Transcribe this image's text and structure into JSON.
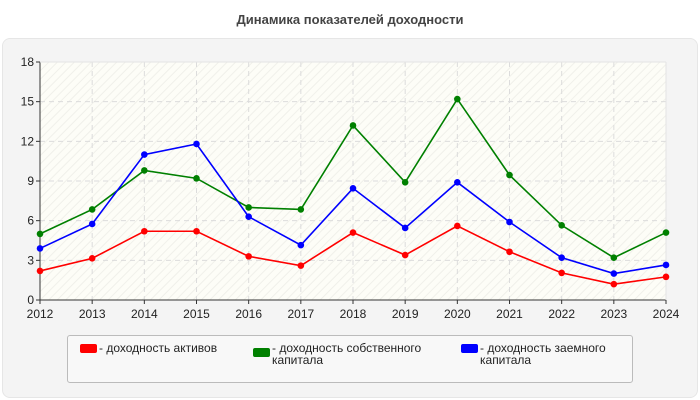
{
  "chart_data": {
    "type": "line",
    "title": "Динамика показателей доходности",
    "xlabel": "",
    "ylabel": "",
    "x": [
      2012,
      2013,
      2014,
      2015,
      2016,
      2017,
      2018,
      2019,
      2020,
      2021,
      2022,
      2023,
      2024
    ],
    "ylim": [
      0,
      18
    ],
    "yticks": [
      0,
      3,
      6,
      9,
      12,
      15,
      18
    ],
    "grid": true,
    "legend": "bottom",
    "series": [
      {
        "name": "- доходность активов",
        "color": "#ff0000",
        "values": [
          2.2,
          3.15,
          5.2,
          5.2,
          3.3,
          2.6,
          5.1,
          3.4,
          5.6,
          3.65,
          2.05,
          1.2,
          1.75
        ]
      },
      {
        "name": "- доходность собственного капитала",
        "color": "#008000",
        "values": [
          5.0,
          6.85,
          9.8,
          9.2,
          7.0,
          6.85,
          13.2,
          8.9,
          15.2,
          9.45,
          5.65,
          3.2,
          5.1
        ]
      },
      {
        "name": "- доходность заемного капитала",
        "color": "#0000ff",
        "values": [
          3.9,
          5.75,
          11.0,
          11.8,
          6.3,
          4.15,
          8.45,
          5.45,
          8.9,
          5.9,
          3.2,
          2.0,
          2.65
        ]
      }
    ]
  }
}
